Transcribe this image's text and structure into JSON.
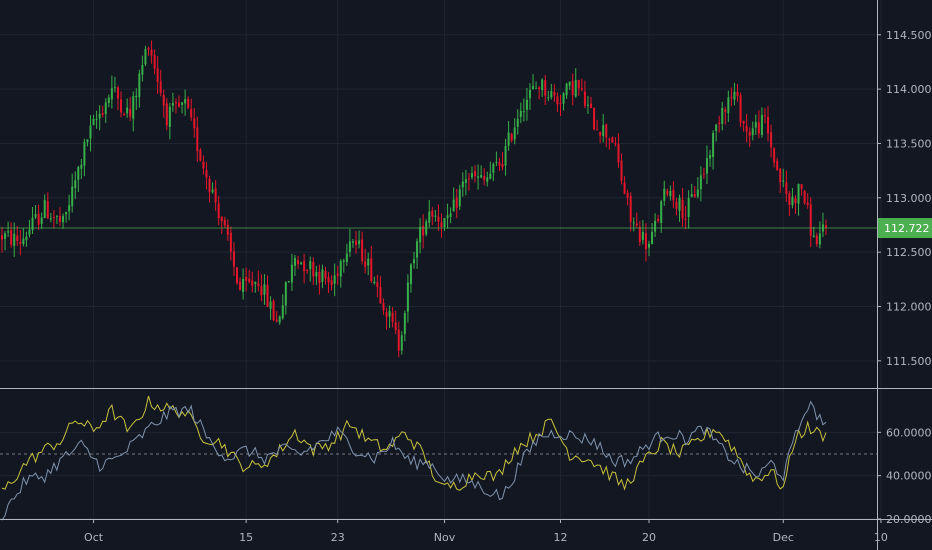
{
  "chart_data": [
    {
      "type": "candlestick",
      "price_axis": {
        "ticks": [
          "114.500",
          "114.000",
          "113.500",
          "113.000",
          "112.500",
          "112.000",
          "111.500"
        ],
        "range": [
          111.25,
          114.82
        ]
      },
      "last_price": {
        "label": "112.722",
        "value": 112.722,
        "color": "#4caf50"
      },
      "up_color": "#26a69a",
      "up_color_display": "#38b04a",
      "down_color": "#e5152a",
      "path_keypoints": [
        [
          0,
          112.65
        ],
        [
          6,
          112.6
        ],
        [
          14,
          112.9
        ],
        [
          20,
          112.75
        ],
        [
          28,
          113.55
        ],
        [
          36,
          114.0
        ],
        [
          42,
          113.75
        ],
        [
          48,
          114.45
        ],
        [
          54,
          113.75
        ],
        [
          60,
          113.85
        ],
        [
          66,
          113.3
        ],
        [
          72,
          112.8
        ],
        [
          78,
          112.15
        ],
        [
          84,
          112.25
        ],
        [
          90,
          111.85
        ],
        [
          96,
          112.45
        ],
        [
          102,
          112.35
        ],
        [
          108,
          112.2
        ],
        [
          114,
          112.65
        ],
        [
          119,
          112.45
        ],
        [
          125,
          112.05
        ],
        [
          130,
          111.65
        ],
        [
          135,
          112.5
        ],
        [
          140,
          112.9
        ],
        [
          146,
          112.75
        ],
        [
          152,
          113.2
        ],
        [
          158,
          113.15
        ],
        [
          164,
          113.35
        ],
        [
          170,
          113.85
        ],
        [
          176,
          114.05
        ],
        [
          182,
          113.9
        ],
        [
          188,
          114.05
        ],
        [
          194,
          113.7
        ],
        [
          200,
          113.55
        ],
        [
          206,
          112.8
        ],
        [
          212,
          112.55
        ],
        [
          218,
          113.1
        ],
        [
          224,
          112.85
        ],
        [
          230,
          113.25
        ],
        [
          236,
          113.85
        ],
        [
          240,
          113.95
        ],
        [
          244,
          113.6
        ],
        [
          250,
          113.7
        ],
        [
          254,
          113.25
        ],
        [
          258,
          112.95
        ],
        [
          262,
          113.1
        ],
        [
          266,
          112.6
        ],
        [
          270,
          112.7
        ]
      ]
    },
    {
      "type": "line",
      "y_axis": {
        "ticks": [
          "60.0000",
          "40.0000",
          "20.0000"
        ],
        "range": [
          20,
          80
        ]
      },
      "reference_line": 50,
      "series": [
        {
          "color": "#c8c23c",
          "keypoints": [
            [
              0,
              32
            ],
            [
              8,
              46
            ],
            [
              14,
              52
            ],
            [
              20,
              57
            ],
            [
              24,
              66
            ],
            [
              30,
              61
            ],
            [
              36,
              70
            ],
            [
              42,
              60
            ],
            [
              48,
              74
            ],
            [
              54,
              71
            ],
            [
              60,
              69
            ],
            [
              66,
              58
            ],
            [
              72,
              55
            ],
            [
              78,
              45
            ],
            [
              84,
              44
            ],
            [
              90,
              50
            ],
            [
              96,
              60
            ],
            [
              102,
              52
            ],
            [
              108,
              55
            ],
            [
              114,
              64
            ],
            [
              120,
              56
            ],
            [
              126,
              52
            ],
            [
              132,
              60
            ],
            [
              138,
              50
            ],
            [
              144,
              34
            ],
            [
              150,
              36
            ],
            [
              156,
              42
            ],
            [
              162,
              39
            ],
            [
              168,
              52
            ],
            [
              174,
              58
            ],
            [
              180,
              65
            ],
            [
              186,
              50
            ],
            [
              192,
              48
            ],
            [
              198,
              42
            ],
            [
              204,
              35
            ],
            [
              210,
              46
            ],
            [
              216,
              55
            ],
            [
              222,
              50
            ],
            [
              228,
              56
            ],
            [
              234,
              62
            ],
            [
              240,
              52
            ],
            [
              246,
              38
            ],
            [
              252,
              42
            ],
            [
              256,
              34
            ],
            [
              260,
              58
            ],
            [
              264,
              62
            ],
            [
              270,
              58
            ]
          ]
        },
        {
          "color": "#7f93ad",
          "keypoints": [
            [
              0,
              22
            ],
            [
              8,
              38
            ],
            [
              14,
              40
            ],
            [
              20,
              48
            ],
            [
              26,
              54
            ],
            [
              32,
              45
            ],
            [
              38,
              48
            ],
            [
              44,
              56
            ],
            [
              50,
              64
            ],
            [
              56,
              70
            ],
            [
              62,
              70
            ],
            [
              68,
              56
            ],
            [
              74,
              48
            ],
            [
              80,
              52
            ],
            [
              86,
              48
            ],
            [
              92,
              52
            ],
            [
              98,
              50
            ],
            [
              104,
              55
            ],
            [
              110,
              60
            ],
            [
              116,
              52
            ],
            [
              122,
              48
            ],
            [
              128,
              55
            ],
            [
              134,
              46
            ],
            [
              140,
              46
            ],
            [
              146,
              38
            ],
            [
              152,
              38
            ],
            [
              158,
              34
            ],
            [
              164,
              30
            ],
            [
              170,
              46
            ],
            [
              176,
              58
            ],
            [
              182,
              60
            ],
            [
              188,
              58
            ],
            [
              194,
              56
            ],
            [
              200,
              47
            ],
            [
              206,
              47
            ],
            [
              212,
              55
            ],
            [
              218,
              60
            ],
            [
              224,
              57
            ],
            [
              230,
              62
            ],
            [
              236,
              52
            ],
            [
              242,
              44
            ],
            [
              248,
              40
            ],
            [
              252,
              46
            ],
            [
              256,
              40
            ],
            [
              260,
              58
            ],
            [
              264,
              73
            ],
            [
              270,
              64
            ]
          ]
        }
      ]
    }
  ],
  "time_axis": {
    "ticks": [
      {
        "label": "Oct",
        "index": 30
      },
      {
        "label": "15",
        "index": 80
      },
      {
        "label": "23",
        "index": 110
      },
      {
        "label": "Nov",
        "index": 145
      },
      {
        "label": "12",
        "index": 183
      },
      {
        "label": "20",
        "index": 212
      },
      {
        "label": "Dec",
        "index": 256
      },
      {
        "label": "10",
        "index": 288
      }
    ],
    "candle_count": 276
  },
  "colors": {
    "background": "#131722",
    "grid": "#1f2431",
    "axis_line": "#b2b5be",
    "text": "#b2b5be"
  }
}
